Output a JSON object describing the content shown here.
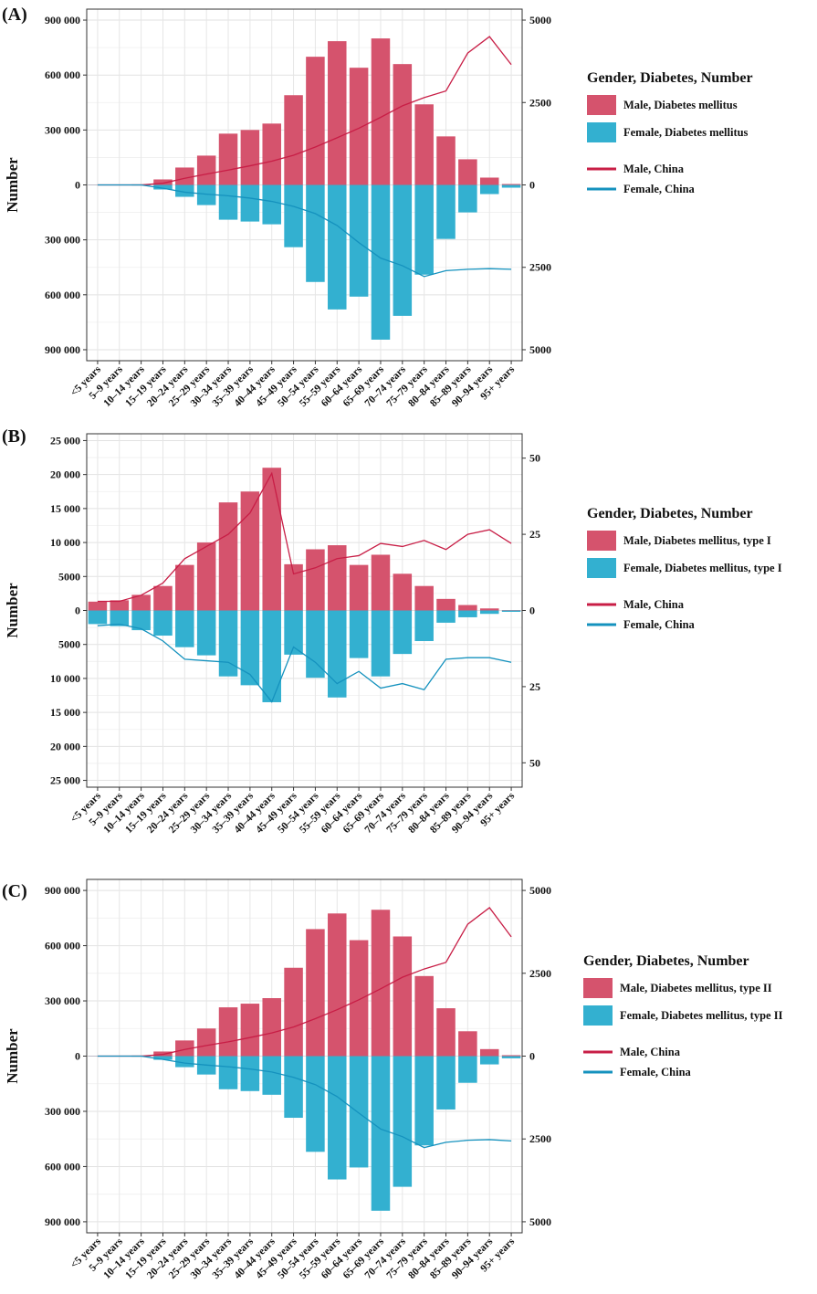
{
  "colors": {
    "male": "#D5536D",
    "female": "#33B0D0",
    "male_line": "#C81E46",
    "female_line": "#1592BE"
  },
  "age_groups": [
    "<5 years",
    "5–9 years",
    "10–14 years",
    "15–19 years",
    "20–24 years",
    "25–29 years",
    "30–34 years",
    "35–39 years",
    "40–44 years",
    "45–49 years",
    "50–54 years",
    "55–59 years",
    "60–64 years",
    "65–69 years",
    "70–74 years",
    "75–79 years",
    "80–84 years",
    "85–89 years",
    "90–94 years",
    "95+ years"
  ],
  "chart_data": [
    {
      "type": "bar",
      "panel_label": "(A)",
      "ylabel": "Number",
      "ylim": [
        -960000,
        960000
      ],
      "yticks_left": [
        900000,
        600000,
        300000,
        0,
        -300000,
        -600000,
        -900000
      ],
      "ytick_labels_left": [
        "900 000",
        "600 000",
        "300 000",
        "0",
        "300 000",
        "600 000",
        "900 000"
      ],
      "y2lim": [
        -5333,
        5333
      ],
      "yticks_right": [
        5000,
        2500,
        0,
        -2500,
        -5000
      ],
      "ytick_labels_right": [
        "5000",
        "2500",
        "0",
        "2500",
        "5000"
      ],
      "legend_title": "Gender, Diabetes, Number",
      "legend_bar_labels": [
        "Male, Diabetes mellitus",
        "Female, Diabetes mellitus"
      ],
      "legend_line_labels": [
        "Male, China",
        "Female, China"
      ],
      "series": [
        {
          "name": "Male, Diabetes mellitus",
          "values": [
            1000,
            2000,
            3000,
            30000,
            95000,
            160000,
            280000,
            300000,
            335000,
            490000,
            700000,
            785000,
            640000,
            800000,
            660000,
            440000,
            265000,
            140000,
            40000,
            5000
          ]
        },
        {
          "name": "Female, Diabetes mellitus",
          "values": [
            -1000,
            -2000,
            -3000,
            -25000,
            -65000,
            -110000,
            -190000,
            -200000,
            -215000,
            -340000,
            -530000,
            -680000,
            -610000,
            -845000,
            -715000,
            -490000,
            -295000,
            -150000,
            -50000,
            -15000
          ]
        },
        {
          "name": "Male, China",
          "axis": "right",
          "values": [
            0,
            0,
            0,
            50,
            200,
            330,
            450,
            580,
            720,
            900,
            1150,
            1430,
            1720,
            2050,
            2400,
            2650,
            2850,
            4000,
            4500,
            3650
          ]
        },
        {
          "name": "Female, China",
          "axis": "right",
          "values": [
            0,
            0,
            0,
            -100,
            -220,
            -280,
            -330,
            -400,
            -500,
            -650,
            -870,
            -1230,
            -1750,
            -2220,
            -2450,
            -2780,
            -2600,
            -2560,
            -2540,
            -2560
          ]
        }
      ]
    },
    {
      "type": "bar",
      "panel_label": "(B)",
      "ylabel": "Number",
      "ylim": [
        -26000,
        26000
      ],
      "yticks_left": [
        25000,
        20000,
        15000,
        10000,
        5000,
        0,
        -5000,
        -10000,
        -15000,
        -20000,
        -25000
      ],
      "ytick_labels_left": [
        "25 000",
        "20 000",
        "15 000",
        "10 000",
        "5000",
        "0",
        "5000",
        "10 000",
        "15 000",
        "20 000",
        "25 000"
      ],
      "y2lim": [
        -58,
        58
      ],
      "yticks_right": [
        50,
        25,
        0,
        -25,
        -50
      ],
      "ytick_labels_right": [
        "50",
        "25",
        "0",
        "25",
        "50"
      ],
      "legend_title": "Gender, Diabetes, Number",
      "legend_bar_labels": [
        "Male, Diabetes mellitus, type I",
        "Female, Diabetes mellitus, type I"
      ],
      "legend_line_labels": [
        "Male, China",
        "Female, China"
      ],
      "series": [
        {
          "name": "Male, Diabetes mellitus, type I",
          "values": [
            1300,
            1500,
            2300,
            3600,
            6700,
            10000,
            15900,
            17500,
            21000,
            6800,
            9000,
            9600,
            6700,
            8200,
            5400,
            3600,
            1700,
            800,
            300,
            50
          ]
        },
        {
          "name": "Female, Diabetes mellitus, type I",
          "values": [
            -2000,
            -2300,
            -2900,
            -3700,
            -5400,
            -6600,
            -9700,
            -11000,
            -13500,
            -6500,
            -9900,
            -12800,
            -7000,
            -9700,
            -6400,
            -4500,
            -1800,
            -1000,
            -500,
            -200
          ]
        },
        {
          "name": "Male, China",
          "axis": "right",
          "values": [
            3,
            3,
            5,
            9,
            17,
            21,
            25,
            32,
            45,
            12,
            14,
            17,
            18,
            22,
            21,
            23,
            20,
            25,
            26.5,
            22
          ]
        },
        {
          "name": "Female, China",
          "axis": "right",
          "values": [
            -5,
            -4.5,
            -6,
            -10,
            -16,
            -16.5,
            -17,
            -21,
            -30,
            -12,
            -17,
            -24,
            -20,
            -25.5,
            -24,
            -26,
            -16,
            -15.5,
            -15.5,
            -17
          ]
        }
      ]
    },
    {
      "type": "bar",
      "panel_label": "(C)",
      "ylabel": "Number",
      "ylim": [
        -960000,
        960000
      ],
      "yticks_left": [
        900000,
        600000,
        300000,
        0,
        -300000,
        -600000,
        -900000
      ],
      "ytick_labels_left": [
        "900 000",
        "600 000",
        "300 000",
        "0",
        "300 000",
        "600 000",
        "900 000"
      ],
      "y2lim": [
        -5333,
        5333
      ],
      "yticks_right": [
        5000,
        2500,
        0,
        -2500,
        -5000
      ],
      "ytick_labels_right": [
        "5000",
        "2500",
        "0",
        "2500",
        "5000"
      ],
      "legend_title": "Gender, Diabetes, Number",
      "legend_bar_labels": [
        "Male, Diabetes mellitus, type II",
        "Female, Diabetes mellitus, type II"
      ],
      "legend_line_labels": [
        "Male, China",
        "Female, China"
      ],
      "series": [
        {
          "name": "Male, Diabetes mellitus, type II",
          "values": [
            1000,
            2000,
            3000,
            25000,
            85000,
            150000,
            265000,
            285000,
            315000,
            480000,
            690000,
            775000,
            630000,
            795000,
            650000,
            435000,
            260000,
            135000,
            38000,
            5000
          ]
        },
        {
          "name": "Female, Diabetes mellitus, type II",
          "values": [
            -1000,
            -2000,
            -3000,
            -20000,
            -60000,
            -100000,
            -180000,
            -190000,
            -210000,
            -335000,
            -520000,
            -670000,
            -605000,
            -840000,
            -710000,
            -485000,
            -290000,
            -145000,
            -45000,
            -12000
          ]
        },
        {
          "name": "Male, China",
          "axis": "right",
          "values": [
            0,
            0,
            0,
            50,
            200,
            320,
            430,
            560,
            700,
            880,
            1130,
            1400,
            1700,
            2030,
            2380,
            2630,
            2830,
            3980,
            4480,
            3600
          ]
        },
        {
          "name": "Female, China",
          "axis": "right",
          "values": [
            0,
            0,
            0,
            -100,
            -210,
            -270,
            -320,
            -390,
            -480,
            -640,
            -860,
            -1220,
            -1720,
            -2200,
            -2430,
            -2760,
            -2600,
            -2540,
            -2520,
            -2560
          ]
        }
      ]
    }
  ]
}
